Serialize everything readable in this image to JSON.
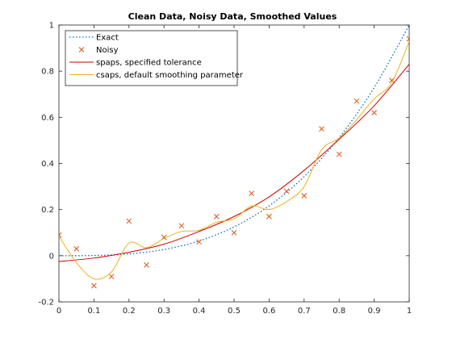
{
  "chart_data": {
    "type": "line",
    "title": "Clean Data, Noisy Data, Smoothed Values",
    "xlabel": "",
    "ylabel": "",
    "xlim": [
      0,
      1
    ],
    "ylim": [
      -0.2,
      1
    ],
    "xticks": [
      0,
      0.1,
      0.2,
      0.3,
      0.4,
      0.5,
      0.6,
      0.7,
      0.8,
      0.9,
      1
    ],
    "xtick_labels": [
      "0",
      "0.1",
      "0.2",
      "0.3",
      "0.4",
      "0.5",
      "0.6",
      "0.7",
      "0.8",
      "0.9",
      "1"
    ],
    "yticks": [
      -0.2,
      0,
      0.2,
      0.4,
      0.6,
      0.8,
      1
    ],
    "ytick_labels": [
      "-0.2",
      "0",
      "0.2",
      "0.4",
      "0.6",
      "0.8",
      "1"
    ],
    "grid": false,
    "legend_position": "top-left",
    "series": [
      {
        "name": "Exact",
        "style": "dotted",
        "color": "#0072BD",
        "x": [
          0,
          0.1,
          0.2,
          0.3,
          0.4,
          0.5,
          0.6,
          0.7,
          0.8,
          0.9,
          1
        ],
        "y": [
          0,
          0.001,
          0.008,
          0.027,
          0.064,
          0.125,
          0.216,
          0.343,
          0.512,
          0.729,
          1.0
        ]
      },
      {
        "name": "Noisy",
        "style": "x-markers",
        "color": "#D95319",
        "x": [
          0,
          0.05,
          0.1,
          0.15,
          0.2,
          0.25,
          0.3,
          0.35,
          0.4,
          0.45,
          0.5,
          0.55,
          0.6,
          0.65,
          0.7,
          0.75,
          0.8,
          0.85,
          0.9,
          0.95,
          1
        ],
        "y": [
          0.09,
          0.03,
          -0.13,
          -0.09,
          0.15,
          -0.04,
          0.08,
          0.13,
          0.06,
          0.17,
          0.1,
          0.27,
          0.17,
          0.28,
          0.26,
          0.55,
          0.44,
          0.67,
          0.62,
          0.76,
          0.94
        ]
      },
      {
        "name": "spaps, specified tolerance",
        "style": "solid",
        "color": "#CC0000",
        "x": [
          0,
          0.1,
          0.2,
          0.3,
          0.4,
          0.5,
          0.6,
          0.7,
          0.8,
          0.9,
          1
        ],
        "y": [
          -0.025,
          -0.01,
          0.015,
          0.05,
          0.105,
          0.17,
          0.255,
          0.37,
          0.505,
          0.65,
          0.83
        ]
      },
      {
        "name": "csaps, default smoothing parameter",
        "style": "solid",
        "color": "#EDB120",
        "x": [
          0,
          0.05,
          0.1,
          0.15,
          0.2,
          0.25,
          0.3,
          0.35,
          0.4,
          0.45,
          0.5,
          0.55,
          0.6,
          0.65,
          0.7,
          0.75,
          0.8,
          0.85,
          0.9,
          0.95,
          1
        ],
        "y": [
          0.085,
          -0.03,
          -0.1,
          -0.07,
          0.055,
          0.035,
          0.075,
          0.105,
          0.11,
          0.145,
          0.16,
          0.215,
          0.2,
          0.235,
          0.3,
          0.46,
          0.51,
          0.59,
          0.68,
          0.75,
          0.93
        ]
      }
    ]
  }
}
